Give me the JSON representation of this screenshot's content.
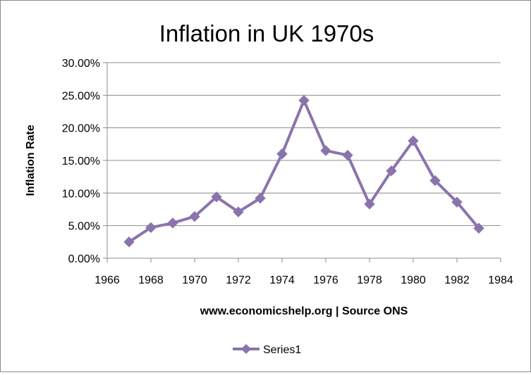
{
  "chart_data": {
    "type": "line",
    "title": "Inflation in UK 1970s",
    "xlabel": "www.economicshelp.org | Source ONS",
    "ylabel": "Inflation Rate",
    "xlim": [
      1966,
      1984
    ],
    "ylim": [
      0,
      0.3
    ],
    "x_ticks": [
      "1966",
      "1968",
      "1970",
      "1972",
      "1974",
      "1976",
      "1978",
      "1980",
      "1982",
      "1984"
    ],
    "y_ticks": [
      "0.00%",
      "5.00%",
      "10.00%",
      "15.00%",
      "20.00%",
      "25.00%",
      "30.00%"
    ],
    "grid": "horizontal",
    "legend_position": "bottom",
    "series": [
      {
        "name": "Series1",
        "color": "#8a74ad",
        "marker": "diamond",
        "x": [
          1967,
          1968,
          1969,
          1970,
          1971,
          1972,
          1973,
          1974,
          1975,
          1976,
          1977,
          1978,
          1979,
          1980,
          1981,
          1982,
          1983
        ],
        "values": [
          0.025,
          0.047,
          0.054,
          0.064,
          0.094,
          0.071,
          0.092,
          0.16,
          0.242,
          0.165,
          0.158,
          0.083,
          0.134,
          0.18,
          0.119,
          0.086,
          0.046
        ]
      }
    ]
  }
}
